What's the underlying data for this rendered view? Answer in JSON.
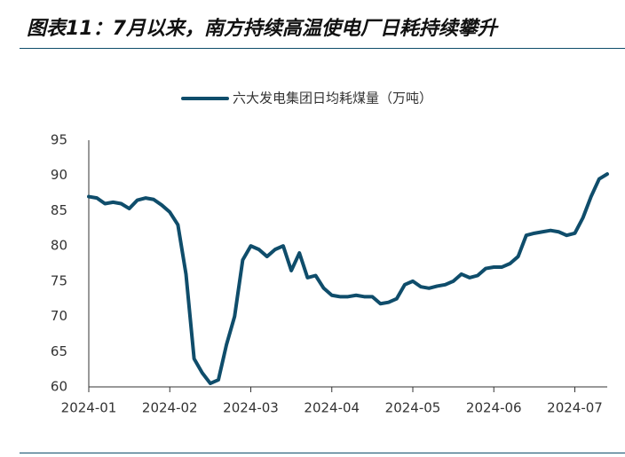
{
  "chart_data": {
    "type": "line",
    "title": "图表11：7月以来，南方持续高温使电厂日耗持续攀升",
    "categories": [
      "2024-01",
      null,
      null,
      null,
      null,
      null,
      null,
      null,
      null,
      null,
      "2024-02",
      null,
      null,
      null,
      null,
      null,
      null,
      null,
      null,
      null,
      "2024-03",
      null,
      null,
      null,
      null,
      null,
      null,
      null,
      null,
      null,
      "2024-04",
      null,
      null,
      null,
      null,
      null,
      null,
      null,
      null,
      null,
      "2024-05",
      null,
      null,
      null,
      null,
      null,
      null,
      null,
      null,
      null,
      "2024-06",
      null,
      null,
      null,
      null,
      null,
      null,
      null,
      null,
      null,
      "2024-07",
      null,
      null,
      null,
      null
    ],
    "series": [
      {
        "name": "六大发电集团日均耗煤量（万吨）",
        "color": "#0f4d6b",
        "values": [
          87,
          86.8,
          86,
          86.2,
          86,
          85.3,
          86.5,
          86.8,
          86.6,
          85.8,
          84.8,
          83,
          76,
          64,
          62,
          60.5,
          61,
          66,
          70,
          78,
          80,
          79.5,
          78.5,
          79.5,
          80,
          76.5,
          79,
          75.5,
          75.8,
          74,
          73,
          72.8,
          72.8,
          73,
          72.8,
          72.8,
          71.8,
          72,
          72.5,
          74.5,
          75,
          74.2,
          74,
          74.3,
          74.5,
          75,
          76,
          75.5,
          75.8,
          76.8,
          77,
          77,
          77.5,
          78.5,
          81.5,
          81.8,
          82,
          82.2,
          82,
          81.5,
          81.8,
          84,
          87,
          89.5,
          90.2
        ]
      }
    ],
    "ylim": [
      60,
      95
    ],
    "yticks": [
      60,
      65,
      70,
      75,
      80,
      85,
      90,
      95
    ],
    "grid": false,
    "legend": "top"
  }
}
